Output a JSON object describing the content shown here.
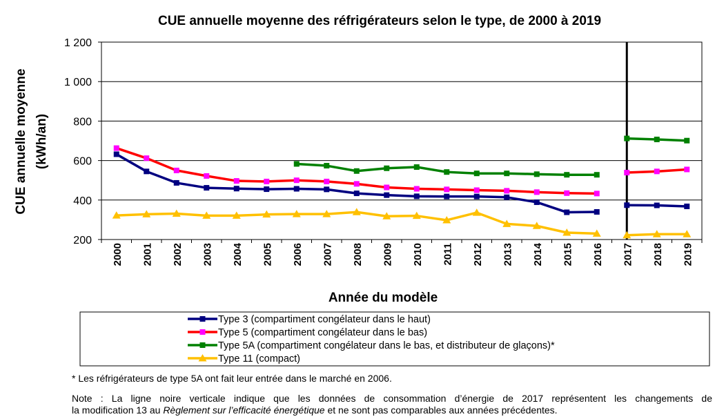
{
  "chart_data": {
    "type": "line",
    "title": "CUE annuelle moyenne des réfrigérateurs selon le type, de 2000 à 2019",
    "ylabel_line1": "CUE annuelle moyenne",
    "ylabel_line2": "(kWh/an)",
    "xlabel": "Année du modèle",
    "ylim": [
      200,
      1200
    ],
    "y_ticks": [
      200,
      400,
      600,
      800,
      1000,
      1200
    ],
    "y_tick_labels": [
      "200",
      "400",
      "600",
      "800",
      "1 000",
      "1 200"
    ],
    "categories": [
      "2000",
      "2001",
      "2002",
      "2003",
      "2004",
      "2005",
      "2006",
      "2007",
      "2008",
      "2009",
      "2010",
      "2011",
      "2012",
      "2013",
      "2014",
      "2015",
      "2016",
      "2017",
      "2018",
      "2019"
    ],
    "break_after": "2016",
    "grid": true,
    "series": [
      {
        "name": "Type 3 (compartiment congélateur dans le haut)",
        "color": "#000080",
        "marker": "square",
        "values": [
          632,
          545,
          487,
          462,
          458,
          455,
          457,
          454,
          434,
          425,
          419,
          418,
          418,
          414,
          389,
          338,
          340,
          374,
          373,
          368
        ]
      },
      {
        "name": "Type 5 (compartiment congélateur dans le bas)",
        "color": "#ff0000",
        "marker": "square",
        "marker_color": "#ff00ff",
        "values": [
          663,
          612,
          550,
          522,
          497,
          494,
          500,
          494,
          482,
          464,
          457,
          454,
          450,
          447,
          440,
          435,
          433,
          539,
          545,
          555
        ]
      },
      {
        "name": "Type 5A (compartiment congélateur dans le bas, et distributeur de glaçons)*",
        "color": "#008000",
        "marker": "square",
        "values": [
          null,
          null,
          null,
          null,
          null,
          null,
          583,
          574,
          547,
          561,
          567,
          542,
          535,
          535,
          531,
          528,
          528,
          712,
          707,
          701
        ]
      },
      {
        "name": "Type 11 (compact)",
        "color": "#ffc000",
        "marker": "triangle",
        "values": [
          322,
          328,
          331,
          321,
          321,
          327,
          329,
          329,
          339,
          318,
          320,
          298,
          336,
          279,
          269,
          235,
          230,
          222,
          227,
          227
        ]
      }
    ]
  },
  "notes": {
    "star": "* Les réfrigérateurs de type 5A ont fait leur entrée dans le marché en 2006.",
    "main_part1": "Note : La ligne noire verticale indique que les données de consommation d’énergie de 2017 représentent les changements de",
    "main_part2_prefix": "la modification 13 au ",
    "main_part2_italic": "Règlement sur l’efficacité énergétique",
    "main_part2_suffix": " et ne sont pas comparables aux années précédentes."
  }
}
